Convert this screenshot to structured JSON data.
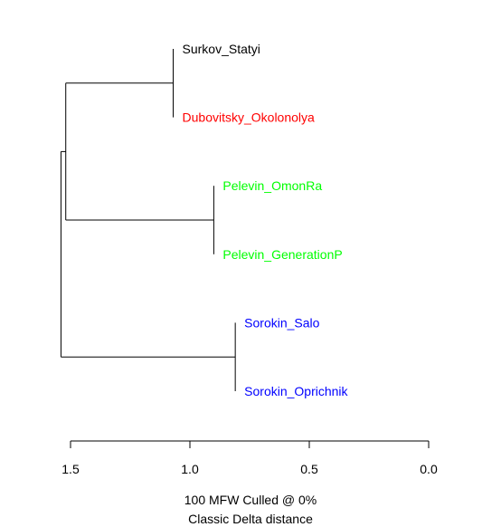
{
  "chart_data": {
    "type": "dendrogram",
    "orientation": "horizontal",
    "x_axis": {
      "direction": "reversed",
      "range": [
        1.5,
        0.0
      ],
      "ticks": [
        1.5,
        1.0,
        0.5,
        0.0
      ],
      "tick_labels": [
        "1.5",
        "1.0",
        "0.5",
        "0.0"
      ]
    },
    "leaves": [
      {
        "label": "Surkov_Statyi",
        "color": "#000000"
      },
      {
        "label": "Dubovitsky_Okolonolya",
        "color": "#ff0000"
      },
      {
        "label": "Pelevin_OmonRa",
        "color": "#00ff00"
      },
      {
        "label": "Pelevin_GenerationP",
        "color": "#00ff00"
      },
      {
        "label": "Sorokin_Salo",
        "color": "#0000ff"
      },
      {
        "label": "Sorokin_Oprichnik",
        "color": "#0000ff"
      }
    ],
    "merges": [
      {
        "children": [
          "L0",
          "L1"
        ],
        "height": 1.07
      },
      {
        "children": [
          "L2",
          "L3"
        ],
        "height": 0.9
      },
      {
        "children": [
          "L4",
          "L5"
        ],
        "height": 0.81
      },
      {
        "children": [
          "M0",
          "M1"
        ],
        "height": 1.52
      },
      {
        "children": [
          "M3",
          "M2"
        ],
        "height": 1.54
      }
    ],
    "caption": {
      "line1": "100 MFW  Culled @ 0%",
      "line2": "Classic Delta distance"
    }
  }
}
